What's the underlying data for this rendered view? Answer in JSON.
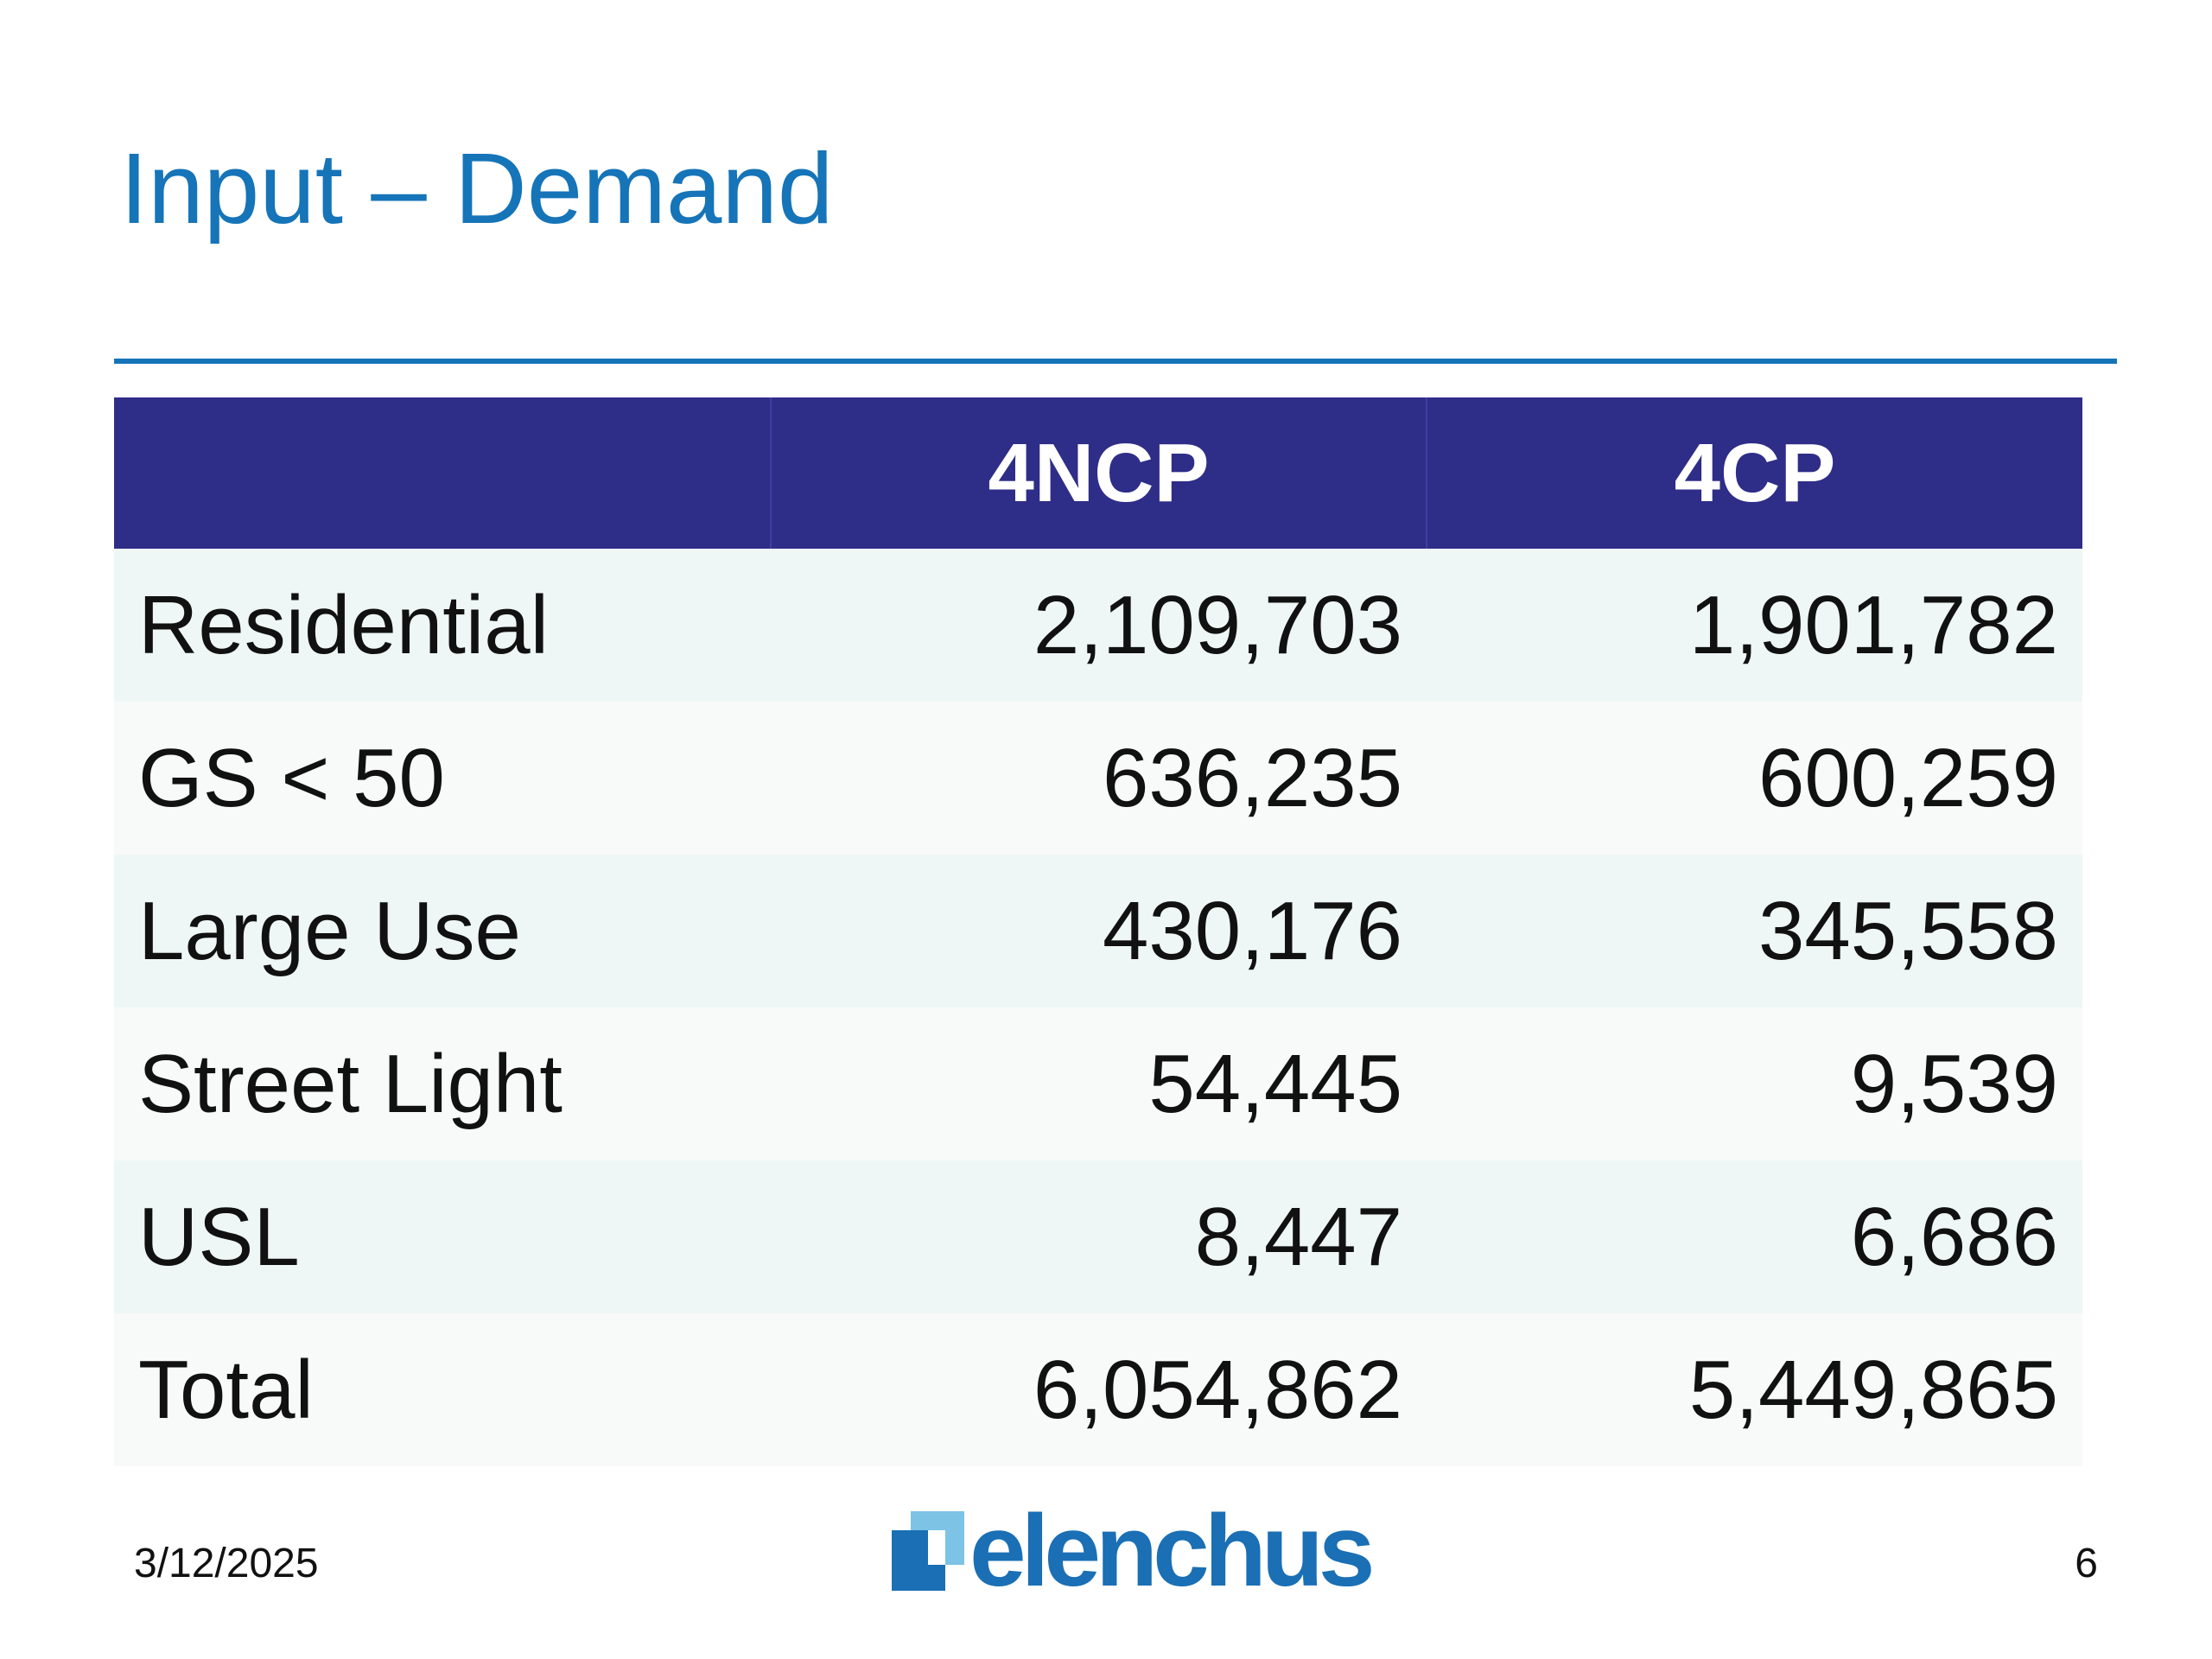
{
  "slide": {
    "title": "Input – Demand",
    "date": "3/12/2025",
    "page_number": "6",
    "logo_text": "elenchus"
  },
  "colors": {
    "title": "#1674b8",
    "header_bg": "#2e2d88",
    "row_odd": "#eef7f5",
    "row_even": "#f7faf9",
    "logo": "#1a6fb5"
  },
  "table": {
    "headers": [
      "",
      "4NCP",
      "4CP"
    ],
    "rows": [
      {
        "label": "Residential",
        "ncp": "2,109,703",
        "cp": "1,901,782"
      },
      {
        "label": "GS < 50",
        "ncp": "636,235",
        "cp": "600,259"
      },
      {
        "label": "Large Use",
        "ncp": "430,176",
        "cp": "345,558"
      },
      {
        "label": "Street Light",
        "ncp": "54,445",
        "cp": "9,539"
      },
      {
        "label": "USL",
        "ncp": "8,447",
        "cp": "6,686"
      },
      {
        "label": "Total",
        "ncp": "6,054,862",
        "cp": "5,449,865"
      }
    ]
  }
}
